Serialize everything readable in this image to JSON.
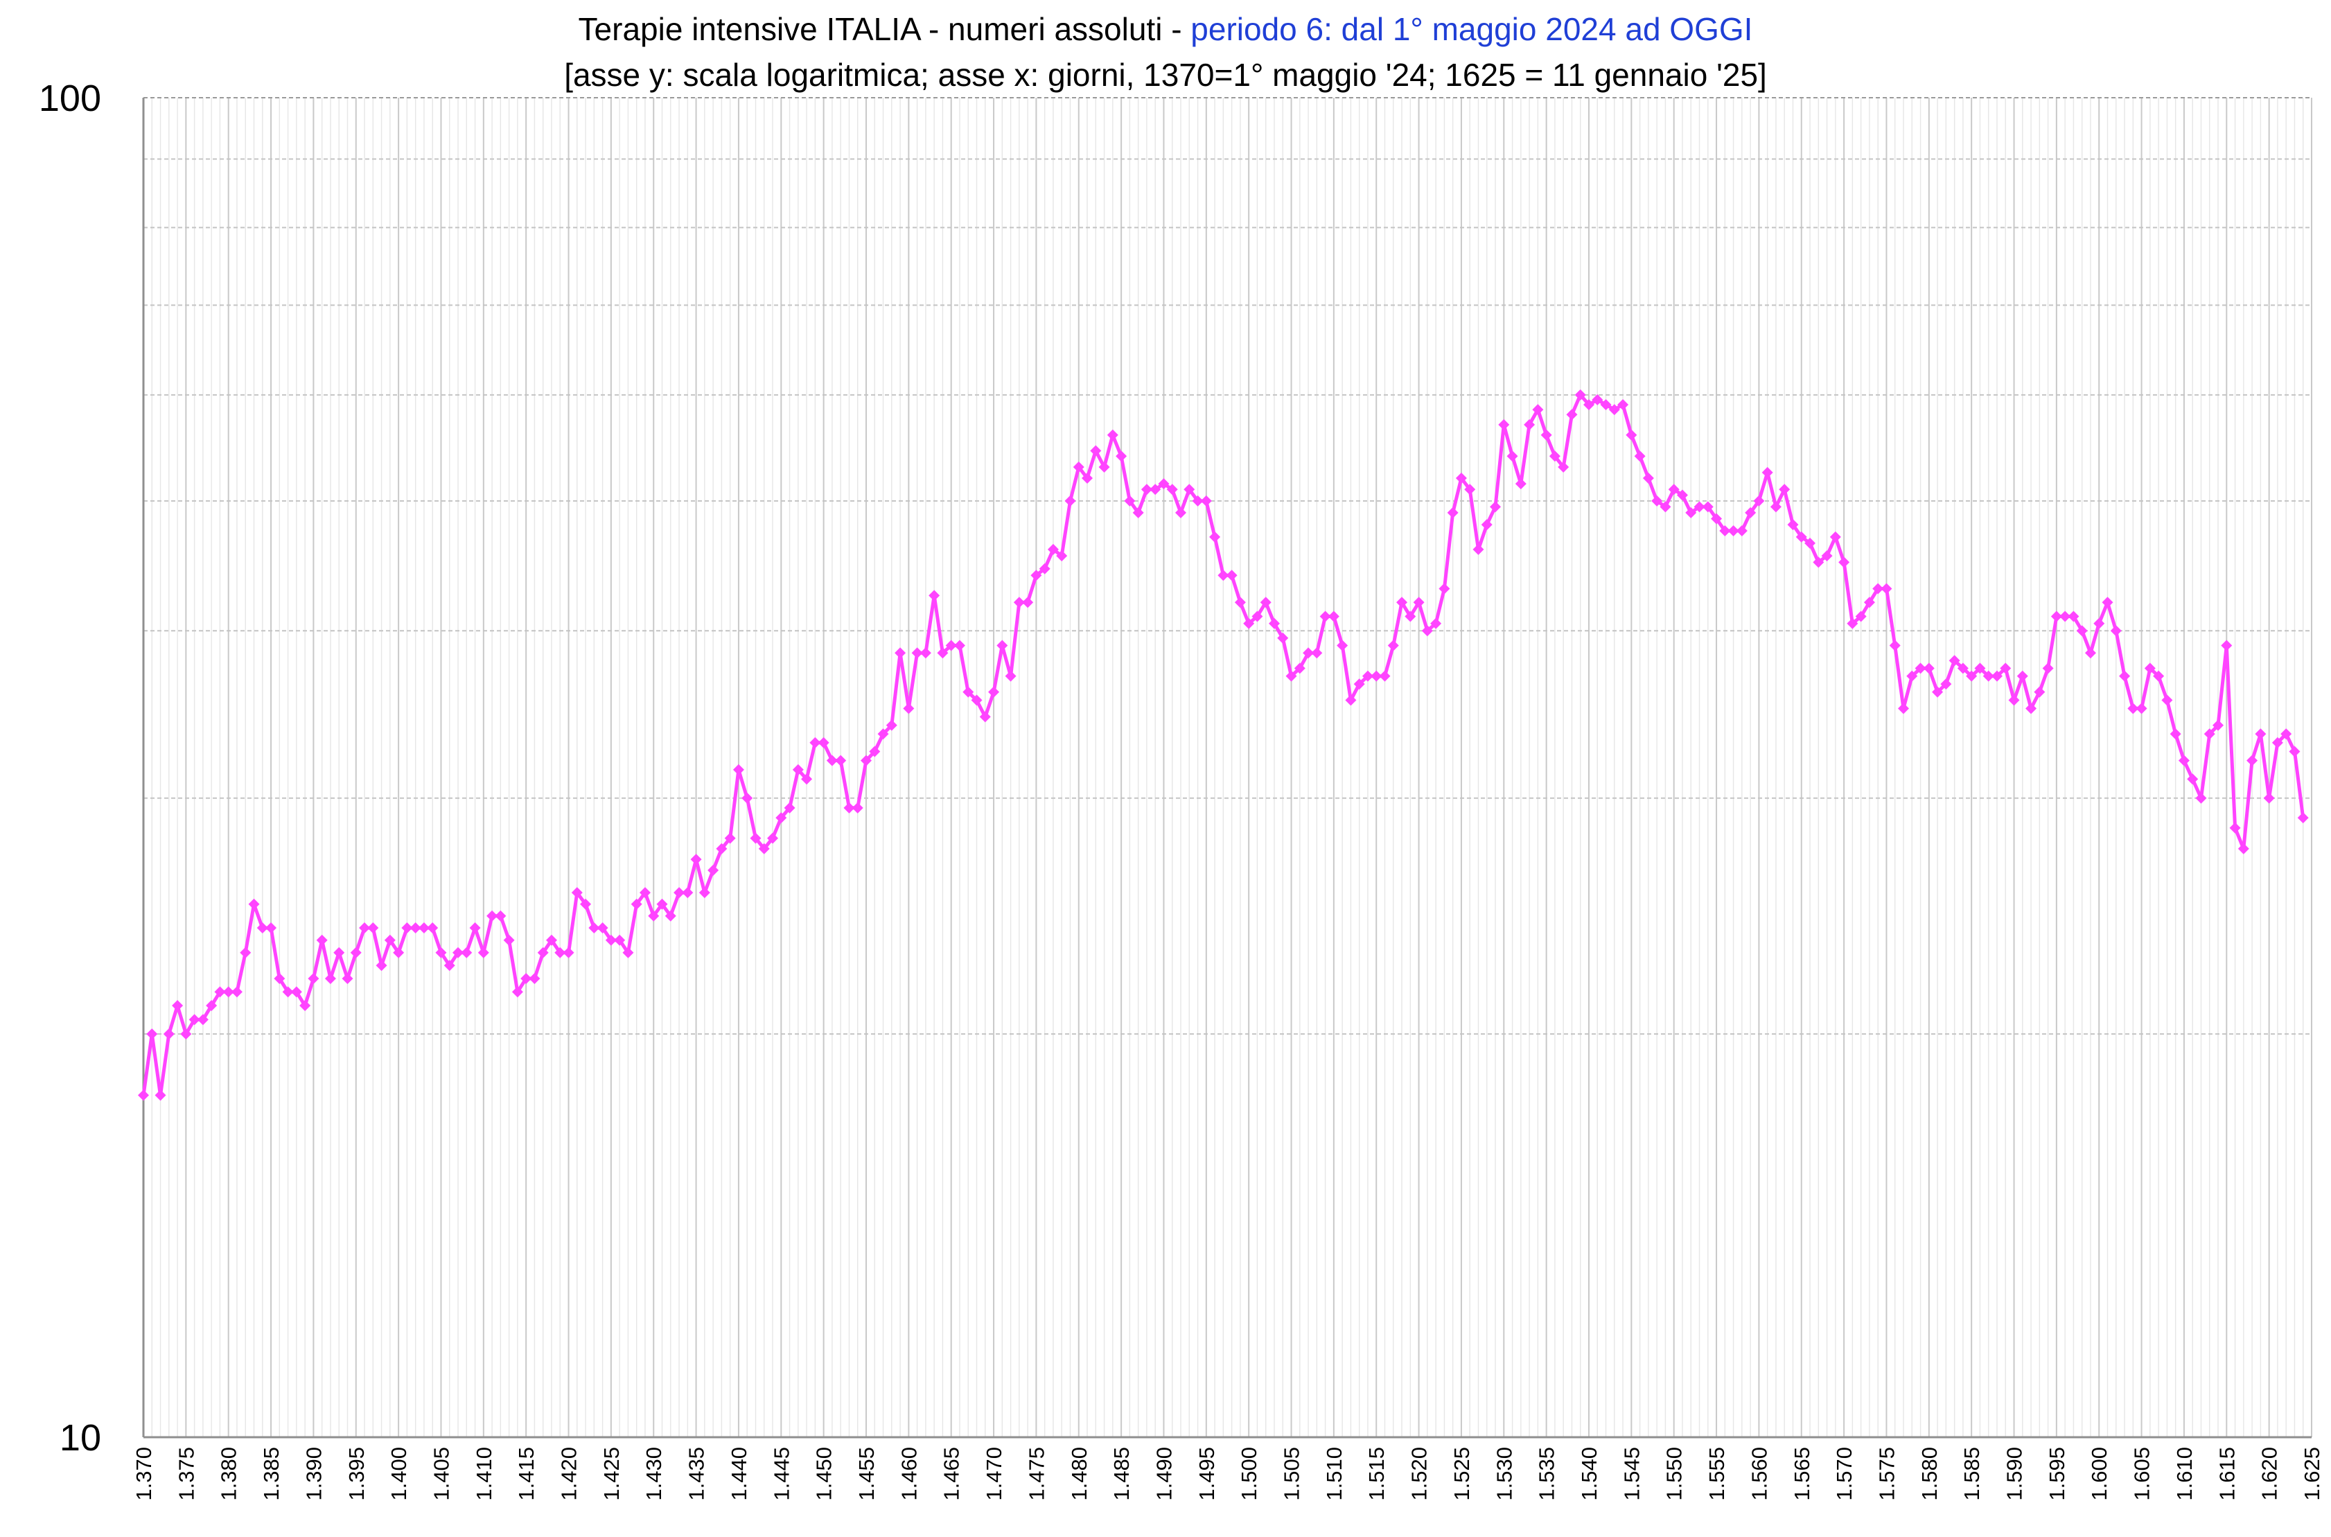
{
  "chart_data": {
    "type": "line",
    "title": "Terapie intensive ITALIA - numeri assoluti - ",
    "title_accent": "periodo 6: dal 1° maggio 2024 ad OGGI",
    "subtitle": "[asse y: scala logaritmica; asse x: giorni, 1370=1° maggio '24; 1625 = 11 gennaio '25]",
    "y_scale": "log",
    "ylim": [
      10,
      100
    ],
    "xlim": [
      1370,
      1625
    ],
    "y_tick_labels": [
      "100",
      "10"
    ],
    "x_tick_labels": [
      "1.370",
      "1.375",
      "1.380",
      "1.385",
      "1.390",
      "1.395",
      "1.400",
      "1.405",
      "1.410",
      "1.415",
      "1.420",
      "1.425",
      "1.430",
      "1.435",
      "1.440",
      "1.445",
      "1.450",
      "1.455",
      "1.460",
      "1.465",
      "1.470",
      "1.475",
      "1.480",
      "1.485",
      "1.490",
      "1.495",
      "1.500",
      "1.505",
      "1.510",
      "1.515",
      "1.520",
      "1.525",
      "1.530",
      "1.535",
      "1.540",
      "1.545",
      "1.550",
      "1.555",
      "1.560",
      "1.565",
      "1.570",
      "1.575",
      "1.580",
      "1.585",
      "1.590",
      "1.595",
      "1.600",
      "1.605",
      "1.610",
      "1.615",
      "1.620",
      "1.625"
    ],
    "grid": true,
    "legend": "none",
    "line_color": "#ff44ff",
    "series": [
      {
        "x_start": 1370,
        "values": [
          18,
          20,
          18,
          20,
          21,
          20,
          20.5,
          20.5,
          21,
          21.5,
          21.5,
          21.5,
          23,
          25,
          24,
          24,
          22,
          21.5,
          21.5,
          21,
          22,
          23.5,
          22,
          23,
          22,
          23,
          24,
          24,
          22.5,
          23.5,
          23,
          24,
          24,
          24,
          24,
          23,
          22.5,
          23,
          23,
          24,
          23,
          24.5,
          24.5,
          23.5,
          21.5,
          22,
          22,
          23,
          23.5,
          23,
          23,
          25.5,
          25,
          24,
          24,
          23.5,
          23.5,
          23,
          25,
          25.5,
          24.5,
          25,
          24.5,
          25.5,
          25.5,
          27,
          25.5,
          26.5,
          27.5,
          28,
          31.5,
          30,
          28,
          27.5,
          28,
          29,
          29.5,
          31.5,
          31,
          33,
          33,
          32,
          32,
          29.5,
          29.5,
          32,
          32.5,
          33.5,
          34,
          38.5,
          35,
          38.5,
          38.5,
          42.5,
          38.5,
          39,
          39,
          36,
          35.5,
          34.5,
          36,
          39,
          37,
          42,
          42,
          44,
          44.5,
          46,
          45.5,
          50,
          53,
          52,
          54.5,
          53,
          56,
          54,
          50,
          49,
          51,
          51,
          51.5,
          51,
          49,
          51,
          50,
          50,
          47,
          44,
          44,
          42,
          40.5,
          41,
          42,
          40.5,
          39.5,
          37,
          37.5,
          38.5,
          38.5,
          41,
          41,
          39,
          35.5,
          36.5,
          37,
          37,
          37,
          39,
          42,
          41,
          42,
          40,
          40.5,
          43,
          49,
          52,
          51,
          46,
          48,
          49.5,
          57,
          54,
          51.5,
          57,
          58.5,
          56,
          54,
          53,
          58,
          60,
          59,
          59.5,
          59,
          58.5,
          59,
          56,
          54,
          52,
          50,
          49.5,
          51,
          50.5,
          49,
          49.5,
          49.5,
          48.5,
          47.5,
          47.5,
          47.5,
          49,
          50,
          52.5,
          49.5,
          51,
          48,
          47,
          46.5,
          45,
          45.5,
          47,
          45,
          40.5,
          41,
          42,
          43,
          43,
          39,
          35,
          37,
          37.5,
          37.5,
          36,
          36.5,
          38,
          37.5,
          37,
          37.5,
          37,
          37,
          37.5,
          35.5,
          37,
          35,
          36,
          37.5,
          41,
          41,
          41,
          40,
          38.5,
          40.5,
          42,
          40,
          37,
          35,
          35,
          37.5,
          37,
          35.5,
          33.5,
          32,
          31,
          30,
          33.5,
          34,
          39,
          28.5,
          27.5,
          32,
          33.5,
          30,
          33,
          33.5,
          32.5,
          29
        ]
      }
    ]
  }
}
